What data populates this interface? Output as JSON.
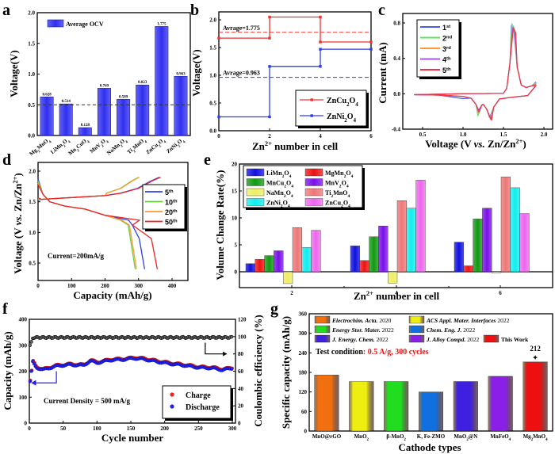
{
  "chart_data": [
    {
      "panel": "a",
      "type": "bar",
      "title": "",
      "xlabel": "",
      "ylabel": "Voltage(V)",
      "ylim": [
        0,
        2.0
      ],
      "yticks": [
        "0.0",
        "0.5",
        "1.0",
        "1.5",
        "2.0"
      ],
      "categories": [
        "Mg2MnO4",
        "LiMn2O4",
        "Mn2CuO4",
        "MnV2O4",
        "NaMn2O4",
        "Ti2MnO4",
        "ZnCu2O4",
        "ZnNi2O4"
      ],
      "values": [
        0.628,
        0.514,
        0.128,
        0.769,
        0.589,
        0.823,
        1.775,
        0.963
      ],
      "value_labels": [
        "0.628",
        "0.514",
        "0.128",
        "0.769",
        "0.589",
        "0.823",
        "1.775",
        "0.963"
      ],
      "legend": [
        "Average OCV"
      ],
      "legend_position": "top-left",
      "reference_line": 0.5,
      "bar_color": "#2f2ff0"
    },
    {
      "panel": "b",
      "type": "line",
      "step": true,
      "xlabel": "Zn2+ number in cell",
      "ylabel": "Voltage(V)",
      "xlim": [
        0,
        6
      ],
      "ylim": [
        0,
        2.1
      ],
      "xticks": [
        "0",
        "2",
        "4",
        "6"
      ],
      "yticks": [
        "0.0",
        "0.5",
        "1.0",
        "1.5",
        "2.0"
      ],
      "series": [
        {
          "name": "ZnCu2O4",
          "color": "#ee3333",
          "x": [
            0,
            2,
            2,
            4,
            4,
            6
          ],
          "y": [
            1.67,
            1.67,
            2.05,
            2.05,
            1.6,
            1.6
          ],
          "average": 1.775,
          "average_label": "Avrage=1.775"
        },
        {
          "name": "ZnNi2O4",
          "color": "#2f3fe8",
          "x": [
            0,
            2,
            2,
            4,
            4,
            6
          ],
          "y": [
            0.25,
            0.25,
            1.16,
            1.16,
            1.47,
            1.47
          ],
          "average": 0.963,
          "average_label": "Avrage=0.963"
        }
      ],
      "legend_position": "bottom-right"
    },
    {
      "panel": "c",
      "type": "line",
      "xlabel": "Voltage (V vs. Zn/Zn2+)",
      "ylabel": "Current (mA)",
      "xlim": [
        0.3,
        2.05
      ],
      "ylim": [
        -0.4,
        0.9
      ],
      "xticks": [
        "0.5",
        "1.0",
        "1.5",
        "2.0"
      ],
      "yticks": [
        "-0.4",
        "0.0",
        "0.4",
        "0.8"
      ],
      "series": [
        {
          "name": "1st",
          "sup": "st",
          "base": "1",
          "color": "#4a5cf0",
          "peak_ox": 0.77,
          "red1": -0.21,
          "red2": -0.27
        },
        {
          "name": "2nd",
          "sup": "nd",
          "base": "2",
          "color": "#66dd66",
          "peak_ox": 0.79,
          "red1": -0.25,
          "red2": -0.27
        },
        {
          "name": "3rd",
          "sup": "rd",
          "base": "3",
          "color": "#ff9933",
          "peak_ox": 0.75,
          "red1": -0.22,
          "red2": -0.29
        },
        {
          "name": "4th",
          "sup": "th",
          "base": "4",
          "color": "#aa55ee",
          "peak_ox": 0.75,
          "red1": -0.21,
          "red2": -0.29
        },
        {
          "name": "5th",
          "sup": "th",
          "base": "5",
          "color": "#ee3344",
          "peak_ox": 0.74,
          "red1": -0.2,
          "red2": -0.3
        }
      ],
      "legend_position": "top-left"
    },
    {
      "panel": "d",
      "type": "line",
      "xlabel": "Capacity (mAh/g)",
      "ylabel": "Voltage (V vs. Zn/Zn2+)",
      "xlim": [
        0,
        450
      ],
      "ylim": [
        0.2,
        2.05
      ],
      "xticks": [
        "0",
        "100",
        "200",
        "300",
        "400"
      ],
      "yticks": [
        "0.5",
        "1.0",
        "1.5",
        "2.0"
      ],
      "annotation": "Current=200mA/g",
      "series": [
        {
          "name": "5th",
          "base": "5",
          "sup": "th",
          "color": "#2f3fe8",
          "capacity": 318,
          "charge_end": 362
        },
        {
          "name": "10th",
          "base": "10",
          "sup": "th",
          "color": "#66cc44",
          "capacity": 290,
          "charge_end": 300
        },
        {
          "name": "20th",
          "base": "20",
          "sup": "th",
          "color": "#ff9933",
          "capacity": 294,
          "charge_end": 302
        },
        {
          "name": "50th",
          "base": "50",
          "sup": "th",
          "color": "#ee2222",
          "capacity": 356,
          "charge_end": 366
        }
      ],
      "legend_position": "right"
    },
    {
      "panel": "e",
      "type": "bar",
      "xlabel": "Zn2+ number in cell",
      "ylabel": "Volume Change Rate(%)",
      "ylim": [
        -3,
        20
      ],
      "yticks": [
        "0",
        "5",
        "10",
        "15",
        "20"
      ],
      "categories": [
        "2",
        "4",
        "6"
      ],
      "series": [
        {
          "name": "LiMn2O4",
          "color": "#1010e0",
          "values": [
            1.5,
            4.8,
            5.5
          ]
        },
        {
          "name": "MgMn2O4",
          "color": "#ee1111",
          "values": [
            2.3,
            2.1,
            1.1
          ]
        },
        {
          "name": "MnCu2O4",
          "color": "#119911",
          "values": [
            3.0,
            6.5,
            9.8
          ]
        },
        {
          "name": "MnV2O4",
          "color": "#7a10e8",
          "values": [
            3.9,
            8.5,
            11.8
          ]
        },
        {
          "name": "NaMn2O4",
          "color": "#eeee66",
          "values": [
            -2.2,
            -2.1,
            -0.2
          ]
        },
        {
          "name": "Ti2MnO4",
          "color": "#ee7777",
          "values": [
            8.2,
            13.2,
            17.6
          ]
        },
        {
          "name": "ZnNi2O4",
          "color": "#11eeee",
          "values": [
            4.5,
            11.8,
            15.6
          ]
        },
        {
          "name": "ZnCu2O4",
          "color": "#ee66ee",
          "values": [
            7.7,
            17.0,
            10.8
          ]
        }
      ],
      "legend_position": "top-left"
    },
    {
      "panel": "f",
      "type": "scatter",
      "xlabel": "Cycle number",
      "ylabel": "Capacity (mAh/g)",
      "ylabel_right": "Coulombic efficiency (%)",
      "xlim": [
        0,
        300
      ],
      "ylim": [
        0,
        400
      ],
      "ylim_right": [
        0,
        120
      ],
      "xticks": [
        "0",
        "50",
        "100",
        "150",
        "200",
        "250",
        "300"
      ],
      "yticks": [
        "0",
        "100",
        "200",
        "300",
        "400"
      ],
      "yticks_right": [
        "0",
        "20",
        "40",
        "60",
        "80",
        "100",
        "120"
      ],
      "annotation": "Current Density = 500 mA/g",
      "series": [
        {
          "name": "Charge",
          "color": "#ee2222",
          "axis": "left"
        },
        {
          "name": "Discharge",
          "color": "#2222ee",
          "axis": "left"
        },
        {
          "name": "Coulombic efficiency",
          "color": "#111111",
          "axis": "right"
        }
      ],
      "capacity_profile": {
        "x": [
          1,
          5,
          10,
          20,
          40,
          60,
          80,
          90,
          100,
          120,
          140,
          155,
          170,
          190,
          210,
          230,
          250,
          270,
          285,
          300
        ],
        "y": [
          160,
          235,
          215,
          205,
          220,
          225,
          222,
          240,
          232,
          243,
          245,
          250,
          246,
          236,
          228,
          222,
          214,
          212,
          205,
          211
        ]
      },
      "ce_value": 99,
      "legend_position": "bottom-right"
    },
    {
      "panel": "g",
      "type": "bar",
      "xlabel": "Cathode types",
      "ylabel": "Specific capacity (mAh/g)",
      "ylim": [
        0,
        360
      ],
      "yticks": [
        "0",
        "60",
        "120",
        "180",
        "240",
        "300",
        "360"
      ],
      "categories": [
        "MnO@rGO",
        "MnO2",
        "β-MnO2",
        "K, Fe-ZMO",
        "MnO2@N",
        "MnFeO4",
        "Mg2MnO4"
      ],
      "values": [
        172,
        152,
        152,
        120,
        152,
        168,
        212
      ],
      "colors": [
        "#f07010",
        "#eeee10",
        "#20dd20",
        "#1070e0",
        "#4020e0",
        "#8a20e8",
        "#ee1010"
      ],
      "legend": [
        {
          "journal": "Electrochim. Acta.",
          "year": "2020"
        },
        {
          "journal": "ACS Appl. Mater. Interfaces",
          "year": "2022"
        },
        {
          "journal": "Energy Stor. Mater.",
          "year": "2022"
        },
        {
          "journal": "Chem. Eng. J.",
          "year": "2022"
        },
        {
          "journal": "J. Energy. Chem.",
          "year": "2022"
        },
        {
          "journal": "J. Alloy Compd.",
          "year": "2022"
        },
        {
          "journal": "This Work",
          "year": ""
        }
      ],
      "test_condition_label": "Test condition",
      "test_condition_value": ": 0.5 A/g,  300 cycles",
      "highlight_label": "212",
      "legend_position": "top"
    }
  ],
  "panel_letters": [
    "a",
    "b",
    "c",
    "d",
    "e",
    "f",
    "g"
  ]
}
